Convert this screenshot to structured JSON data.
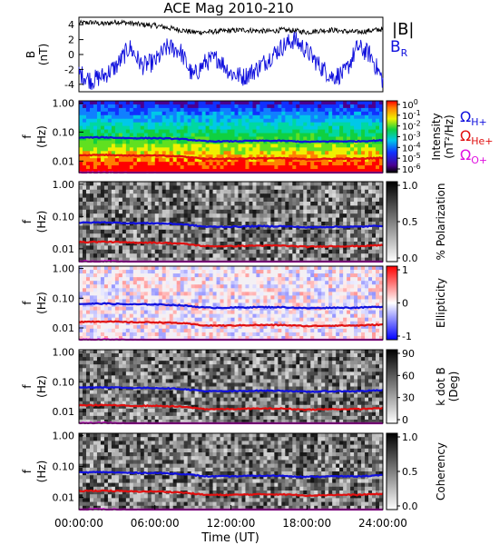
{
  "title": "ACE Mag 2010-210",
  "xlabel": "Time (UT)",
  "xticks": [
    "00:00:00",
    "06:00:00",
    "12:00:00",
    "18:00:00",
    "24:00:00"
  ],
  "panels": {
    "b": {
      "ylabel": [
        "B",
        "(nT)"
      ],
      "yticks": [
        "4",
        "2",
        "0",
        "-2",
        "-4"
      ],
      "legend_b": "|B|",
      "legend_br": "B",
      "legend_br_sub": "R",
      "colors": {
        "b": "#000000",
        "br": "#1010dd"
      }
    },
    "freq_ticks": [
      "1.00",
      "0.10",
      "0.01"
    ],
    "freq_ylabel": [
      "f",
      "(Hz)"
    ],
    "intensity": {
      "cbar_ticks": [
        {
          "base": "10",
          "exp": "0"
        },
        {
          "base": "10",
          "exp": "-1"
        },
        {
          "base": "10",
          "exp": "-2"
        },
        {
          "base": "10",
          "exp": "-3"
        },
        {
          "base": "10",
          "exp": "-4"
        },
        {
          "base": "10",
          "exp": "-5"
        },
        {
          "base": "10",
          "exp": "-6"
        }
      ],
      "cbar_label": "Intensity",
      "cbar_unit": "(nT²/Hz)"
    },
    "polarization": {
      "cbar_ticks": [
        "1.0",
        "0.5",
        "0.0"
      ],
      "cbar_label": "% Polarization"
    },
    "ellipticity": {
      "cbar_ticks": [
        "1",
        "0",
        "-1"
      ],
      "cbar_label": "Ellipticity"
    },
    "kdotb": {
      "cbar_ticks": [
        "90",
        "60",
        "30",
        "0"
      ],
      "cbar_label": "k dot B",
      "cbar_unit": "(Deg)"
    },
    "coherency": {
      "cbar_ticks": [
        "1.0",
        "0.5",
        "0.0"
      ],
      "cbar_label": "Coherency"
    }
  },
  "gyro_legend": [
    {
      "sym": "Ω",
      "sub": "H+",
      "color": "#1010dd"
    },
    {
      "sym": "Ω",
      "sub": "He+",
      "color": "#e01010"
    },
    {
      "sym": "Ω",
      "sub": "O+",
      "color": "#e010e0"
    }
  ],
  "chart_data": {
    "type": "line",
    "title": "ACE Mag 2010-210",
    "xlabel": "Time (UT)",
    "x_range_hours": [
      0,
      24
    ],
    "panel_b": {
      "ylim": [
        -5,
        5
      ],
      "ylabel": "B (nT)",
      "x_hours": [
        0,
        1,
        2,
        3,
        4,
        5,
        6,
        7,
        8,
        9,
        10,
        11,
        12,
        13,
        14,
        15,
        16,
        17,
        18,
        19,
        20,
        21,
        22,
        23,
        24
      ],
      "series": [
        {
          "name": "|B|",
          "values": [
            4.2,
            4.3,
            4.1,
            4.4,
            4.2,
            4.0,
            3.9,
            3.6,
            3.3,
            3.0,
            3.0,
            3.1,
            3.2,
            3.3,
            3.2,
            3.1,
            3.3,
            3.2,
            3.0,
            3.2,
            3.3,
            3.1,
            3.0,
            3.2,
            3.4
          ]
        },
        {
          "name": "B_R",
          "values": [
            -2.5,
            -3.5,
            -2.8,
            -1.5,
            1.0,
            -1.5,
            -1.0,
            1.0,
            0.5,
            -3.0,
            -1.0,
            -0.5,
            -2.5,
            -3.0,
            -2.0,
            -0.5,
            1.0,
            2.0,
            0.5,
            -1.5,
            -3.0,
            -2.5,
            1.0,
            0.0,
            -3.5
          ]
        }
      ]
    },
    "frequency_range_hz": [
      0.004,
      1.2
    ],
    "gyrofrequency_hz": {
      "x_hours": [
        0,
        2,
        4,
        6,
        8,
        10,
        12,
        14,
        16,
        18,
        20,
        22,
        24
      ],
      "series": [
        {
          "name": "H+",
          "values": [
            0.064,
            0.066,
            0.062,
            0.062,
            0.058,
            0.048,
            0.048,
            0.05,
            0.05,
            0.046,
            0.048,
            0.048,
            0.052
          ]
        },
        {
          "name": "He+",
          "values": [
            0.016,
            0.0165,
            0.0155,
            0.0155,
            0.0145,
            0.012,
            0.012,
            0.0125,
            0.0125,
            0.0115,
            0.012,
            0.012,
            0.013
          ]
        },
        {
          "name": "O+",
          "values": [
            0.004,
            0.0041,
            0.0039,
            0.0039,
            0.0036,
            0.003,
            0.003,
            0.0031,
            0.0031,
            0.0029,
            0.003,
            0.003,
            0.0033
          ]
        }
      ]
    },
    "colorbars": {
      "intensity": {
        "range": [
          1e-06,
          1
        ],
        "scale": "log"
      },
      "polarization": {
        "range": [
          0,
          1
        ]
      },
      "ellipticity": {
        "range": [
          -1,
          1
        ]
      },
      "kdotb": {
        "range": [
          0,
          90
        ]
      },
      "coherency": {
        "range": [
          0,
          1
        ]
      }
    }
  }
}
